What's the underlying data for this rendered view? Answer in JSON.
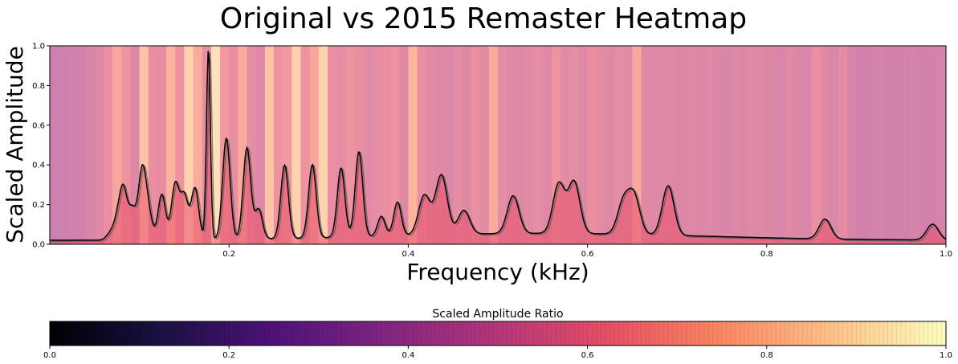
{
  "chart_data": {
    "type": "line",
    "title": "Original vs 2015 Remaster Heatmap",
    "xlabel": "Frequency (kHz)",
    "ylabel": "Scaled Amplitude",
    "xlim": [
      0.0,
      1.0
    ],
    "ylim": [
      0.0,
      1.0
    ],
    "x_ticks": [
      "0.2",
      "0.4",
      "0.6",
      "0.8",
      "1.0"
    ],
    "y_ticks": [
      "0.0",
      "0.2",
      "0.4",
      "0.6",
      "0.8",
      "1.0"
    ],
    "grid": false,
    "colormap": "magma",
    "colorbar": {
      "label": "Scaled Amplitude Ratio",
      "range": [
        0.0,
        1.0
      ],
      "ticks": [
        "0.0",
        "0.2",
        "0.4",
        "0.6",
        "0.8",
        "1.0"
      ]
    },
    "curve_color": "#000000",
    "baseline": 0.02,
    "peaks": [
      {
        "x": 0.067,
        "y": 0.07
      },
      {
        "x": 0.075,
        "y": 0.13
      },
      {
        "x": 0.082,
        "y": 0.29
      },
      {
        "x": 0.092,
        "y": 0.19
      },
      {
        "x": 0.103,
        "y": 0.38
      },
      {
        "x": 0.11,
        "y": 0.17
      },
      {
        "x": 0.125,
        "y": 0.27
      },
      {
        "x": 0.14,
        "y": 0.32
      },
      {
        "x": 0.15,
        "y": 0.26
      },
      {
        "x": 0.162,
        "y": 0.3
      },
      {
        "x": 0.177,
        "y": 1.0
      },
      {
        "x": 0.197,
        "y": 0.55
      },
      {
        "x": 0.22,
        "y": 0.5
      },
      {
        "x": 0.233,
        "y": 0.19
      },
      {
        "x": 0.262,
        "y": 0.41
      },
      {
        "x": 0.293,
        "y": 0.41
      },
      {
        "x": 0.325,
        "y": 0.39
      },
      {
        "x": 0.345,
        "y": 0.47
      },
      {
        "x": 0.37,
        "y": 0.14
      },
      {
        "x": 0.388,
        "y": 0.21
      },
      {
        "x": 0.418,
        "y": 0.24
      },
      {
        "x": 0.437,
        "y": 0.34
      },
      {
        "x": 0.462,
        "y": 0.16
      },
      {
        "x": 0.517,
        "y": 0.23
      },
      {
        "x": 0.568,
        "y": 0.29
      },
      {
        "x": 0.585,
        "y": 0.3
      },
      {
        "x": 0.64,
        "y": 0.2
      },
      {
        "x": 0.652,
        "y": 0.23
      },
      {
        "x": 0.69,
        "y": 0.29
      },
      {
        "x": 0.865,
        "y": 0.14
      },
      {
        "x": 0.985,
        "y": 0.12
      }
    ],
    "strip_ratios": [
      0.48,
      0.49,
      0.5,
      0.51,
      0.53,
      0.55,
      0.6,
      0.7,
      0.62,
      0.55,
      0.8,
      0.6,
      0.58,
      0.75,
      0.62,
      0.85,
      0.72,
      0.6,
      0.9,
      0.65,
      0.6,
      0.72,
      0.58,
      0.55,
      0.8,
      0.62,
      0.65,
      0.85,
      0.62,
      0.7,
      0.85,
      0.6,
      0.58,
      0.62,
      0.6,
      0.57,
      0.58,
      0.6,
      0.62,
      0.56,
      0.75,
      0.6,
      0.57,
      0.56,
      0.55,
      0.58,
      0.56,
      0.6,
      0.57,
      0.72,
      0.58,
      0.55,
      0.56,
      0.57,
      0.58,
      0.56,
      0.62,
      0.57,
      0.58,
      0.56,
      0.6,
      0.57,
      0.56,
      0.58,
      0.57,
      0.7,
      0.56,
      0.55,
      0.56,
      0.55,
      0.54,
      0.55,
      0.54,
      0.55,
      0.54,
      0.53,
      0.55,
      0.54,
      0.56,
      0.55,
      0.54,
      0.53,
      0.56,
      0.54,
      0.53,
      0.6,
      0.56,
      0.54,
      0.58,
      0.52,
      0.5,
      0.51,
      0.52,
      0.51,
      0.5,
      0.51,
      0.52,
      0.5,
      0.51,
      0.52
    ]
  }
}
